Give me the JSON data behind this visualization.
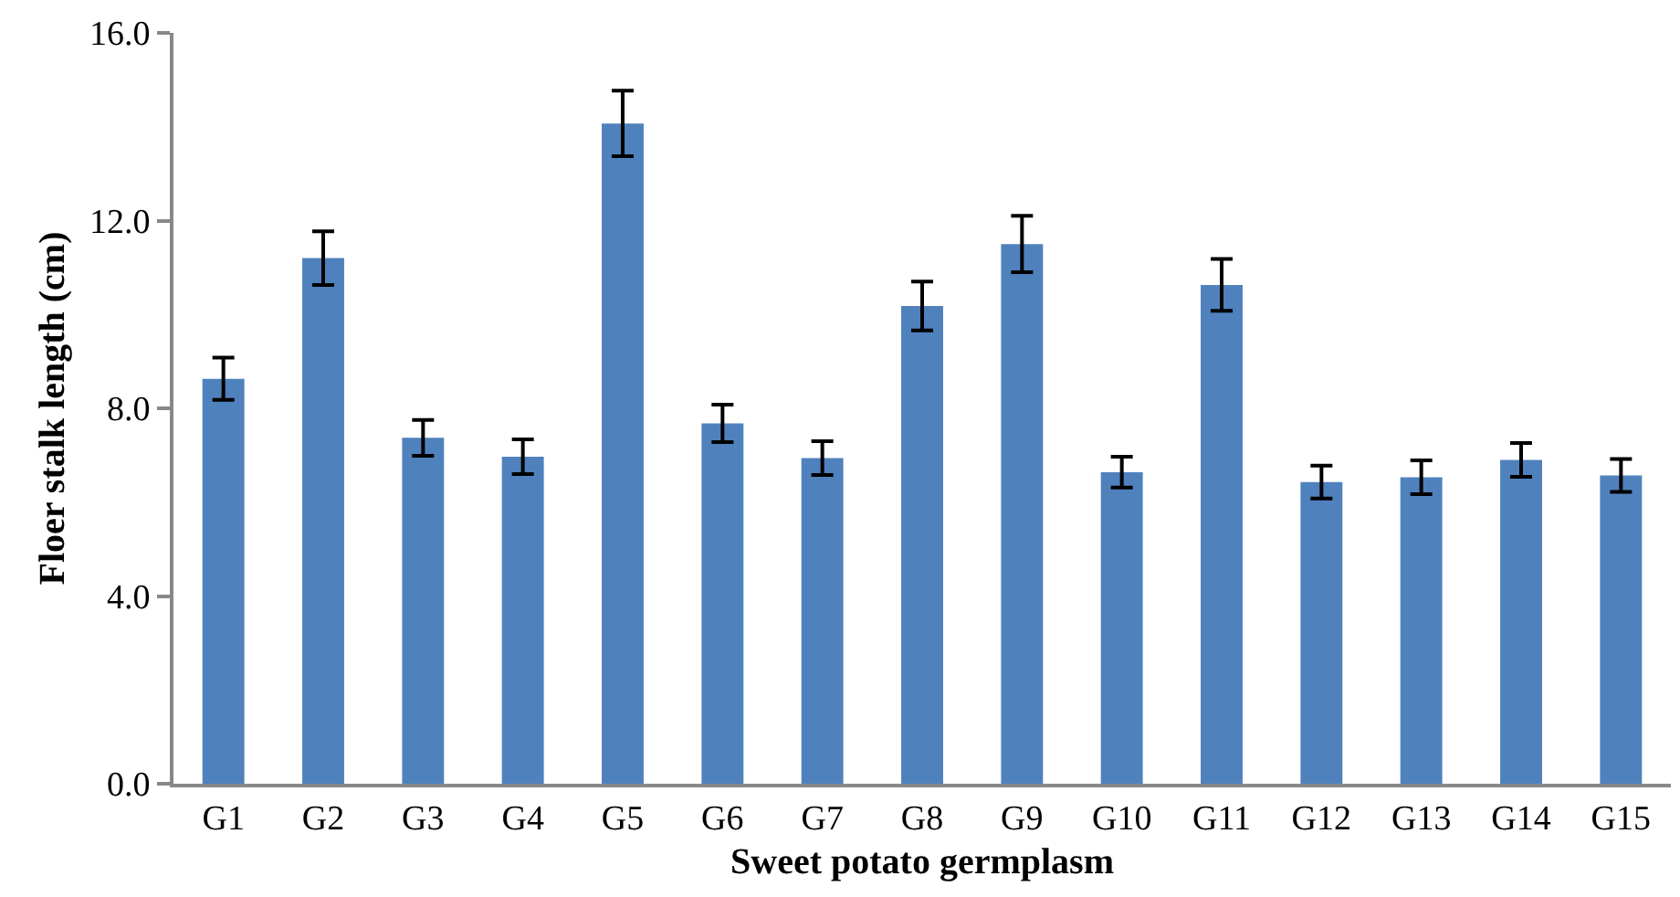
{
  "chart_data": {
    "type": "bar",
    "xlabel": "Sweet potato germplasm",
    "ylabel": "Floer stalk length (cm)",
    "categories": [
      "G1",
      "G2",
      "G3",
      "G4",
      "G5",
      "G6",
      "G7",
      "G8",
      "G9",
      "G10",
      "G11",
      "G12",
      "G13",
      "G14",
      "G15"
    ],
    "values": [
      8.63,
      11.2,
      7.37,
      6.97,
      14.07,
      7.68,
      6.94,
      10.18,
      11.5,
      6.64,
      10.63,
      6.43,
      6.53,
      6.9,
      6.57
    ],
    "errors": [
      0.45,
      0.57,
      0.38,
      0.37,
      0.7,
      0.4,
      0.36,
      0.52,
      0.6,
      0.33,
      0.55,
      0.35,
      0.36,
      0.36,
      0.35
    ],
    "color": "#4f81bd",
    "ylim": [
      0,
      16
    ],
    "yticks": [
      {
        "value": 0,
        "label": "0.0"
      },
      {
        "value": 4,
        "label": "4.0"
      },
      {
        "value": 8,
        "label": "8.0"
      },
      {
        "value": 12,
        "label": "12.0"
      },
      {
        "value": 16,
        "label": "16.0"
      }
    ],
    "legend": false
  }
}
